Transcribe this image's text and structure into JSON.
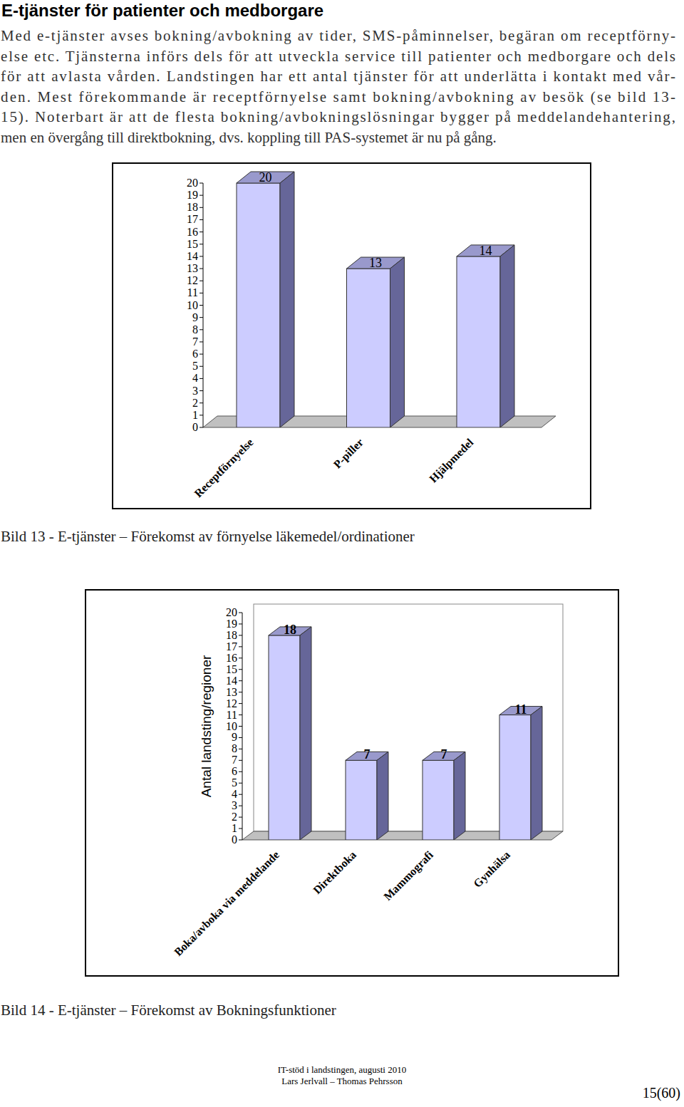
{
  "document": {
    "heading": "E-tjänster för patienter och medborgare",
    "paragraph_lines": [
      "Med e-tjänster avses bokning/avbokning av tider, SMS-påminnelser, begäran om receptförny-",
      "else etc. Tjänsterna införs dels för att utveckla service till patienter och medborgare och dels",
      "för att avlasta vården. Landstingen har ett antal tjänster för att underlätta i kontakt med vår-",
      "den. Mest förekommande är receptförnyelse samt bokning/avbokning av besök (se bild 13-",
      "15). Noterbart är att de flesta bokning/avbokningslösningar bygger på meddelandehantering,",
      "men en övergång till direktbokning, dvs. koppling till PAS-systemet är nu på gång."
    ],
    "footer": {
      "lines": [
        "IT-stöd i landstingen, augusti 2010",
        "Lars Jerlvall – Thomas Pehrsson"
      ],
      "page": "15(60)"
    }
  },
  "chart_data": [
    {
      "type": "bar",
      "title": "Bild 13 - E-tjänster – Förekomst av förnyelse läkemedel/ordinationer",
      "categories": [
        "Receptförnyelse",
        "P-piller",
        "Hjälpmedel"
      ],
      "values": [
        20,
        13,
        14
      ],
      "color": "#ccccff",
      "ylim": [
        0,
        20
      ],
      "yticks": [
        0,
        1,
        2,
        3,
        4,
        5,
        6,
        7,
        8,
        9,
        10,
        11,
        12,
        13,
        14,
        15,
        16,
        17,
        18,
        19,
        20
      ],
      "grid": false,
      "data_labels": true
    },
    {
      "type": "bar",
      "title": "Bild 14 - E-tjänster – Förekomst av Bokningsfunktioner",
      "ylabel": "Antal landsting/regioner",
      "categories": [
        "Boka/avboka via meddelande",
        "Direktboka",
        "Mammografi",
        "Gynhälsa"
      ],
      "values": [
        18,
        7,
        7,
        11
      ],
      "color": "#ccccff",
      "ylim": [
        0,
        20
      ],
      "yticks": [
        0,
        1,
        2,
        3,
        4,
        5,
        6,
        7,
        8,
        9,
        10,
        11,
        12,
        13,
        14,
        15,
        16,
        17,
        18,
        19,
        20
      ],
      "grid": false,
      "data_labels": true
    }
  ]
}
